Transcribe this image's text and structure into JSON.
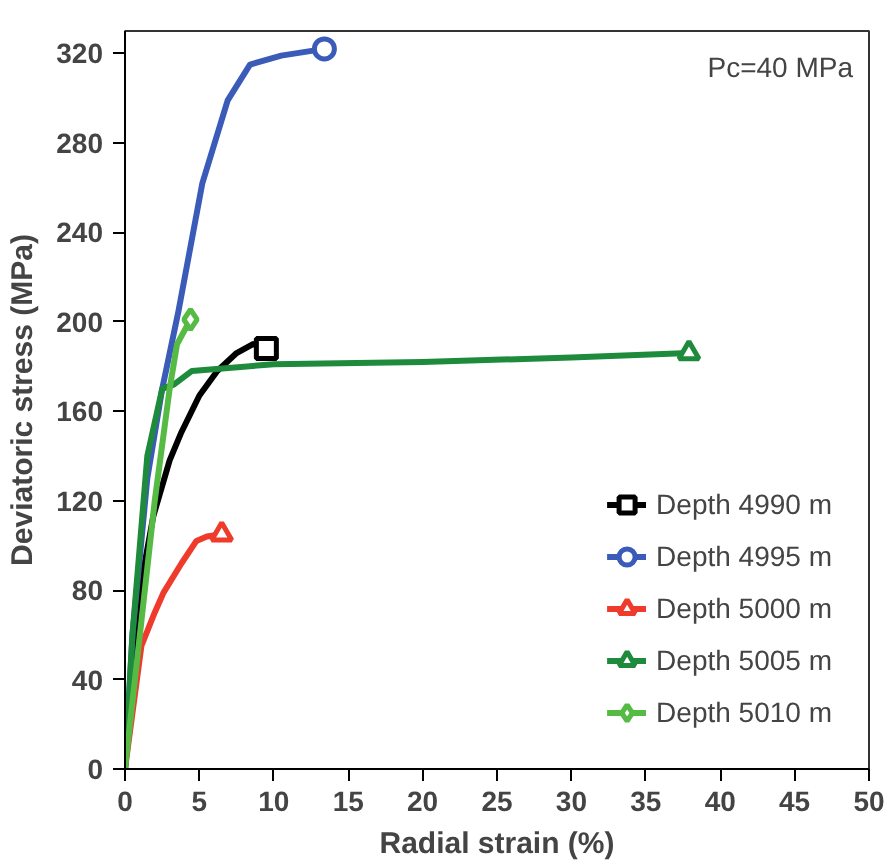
{
  "chart_data": {
    "type": "line",
    "xlabel": "Radial strain (%)",
    "ylabel": "Deviatoric stress (MPa)",
    "annotations": [
      "Pc=40 MPa"
    ],
    "xlim": [
      0,
      50
    ],
    "xticks": [
      0,
      5,
      10,
      15,
      20,
      25,
      30,
      35,
      40,
      45,
      50
    ],
    "ylim": [
      0,
      330
    ],
    "yticks": [
      0,
      40,
      80,
      120,
      160,
      200,
      240,
      280,
      320
    ],
    "grid": false,
    "legend": "bottom right",
    "line_style": "solid",
    "series": [
      {
        "name": "Depth 4990 m",
        "color": "#000000",
        "x": [
          0,
          0.5,
          1,
          1.9,
          3,
          3.75,
          5,
          6.2,
          7.5,
          8.6,
          9.5
        ],
        "values": [
          0,
          50,
          80,
          113,
          138,
          150,
          167,
          178,
          186,
          190,
          188
        ]
      },
      {
        "name": "Depth 4995 m",
        "color": "#3a5bb8",
        "x": [
          0,
          0.5,
          1.5,
          2.5,
          3.6,
          5.2,
          6.9,
          8.4,
          10.5,
          13.4
        ],
        "values": [
          0,
          60,
          130,
          170,
          205,
          262,
          299,
          315,
          319,
          322
        ]
      },
      {
        "name": "Depth 5000 m",
        "color": "#ee3b2b",
        "x": [
          0,
          1.1,
          2,
          2.6,
          3.8,
          4.8,
          5.5,
          6.5
        ],
        "values": [
          0,
          55,
          70,
          79,
          92,
          102,
          104,
          105
        ]
      },
      {
        "name": "Depth 5005 m",
        "color": "#1e8a3c",
        "x": [
          0,
          0.5,
          1,
          1.5,
          2.5,
          3.3,
          4.5,
          10,
          20,
          30,
          37.9
        ],
        "values": [
          0,
          60,
          100,
          140,
          170,
          172,
          178,
          181,
          182,
          184,
          186
        ]
      },
      {
        "name": "Depth 5010 m",
        "color": "#55bb44",
        "x": [
          0,
          1,
          2,
          3,
          3.5,
          4.4
        ],
        "values": [
          0,
          60,
          120,
          170,
          190,
          201
        ]
      },
      {
        "type": "scatter",
        "color": "#000000",
        "marker": "square",
        "x": [
          9.5
        ],
        "values": [
          188
        ]
      },
      {
        "type": "scatter",
        "color": "#3a5bb8",
        "marker": "circle",
        "x": [
          13.4
        ],
        "values": [
          322
        ]
      },
      {
        "type": "scatter",
        "color": "#ee3b2b",
        "marker": "triangle",
        "x": [
          6.5
        ],
        "values": [
          105
        ]
      },
      {
        "type": "scatter",
        "color": "#1e8a3c",
        "marker": "triangle",
        "x": [
          37.9
        ],
        "values": [
          186
        ]
      },
      {
        "type": "scatter",
        "color": "#55bb44",
        "marker": "diamond",
        "x": [
          4.4
        ],
        "values": [
          201
        ]
      }
    ]
  }
}
